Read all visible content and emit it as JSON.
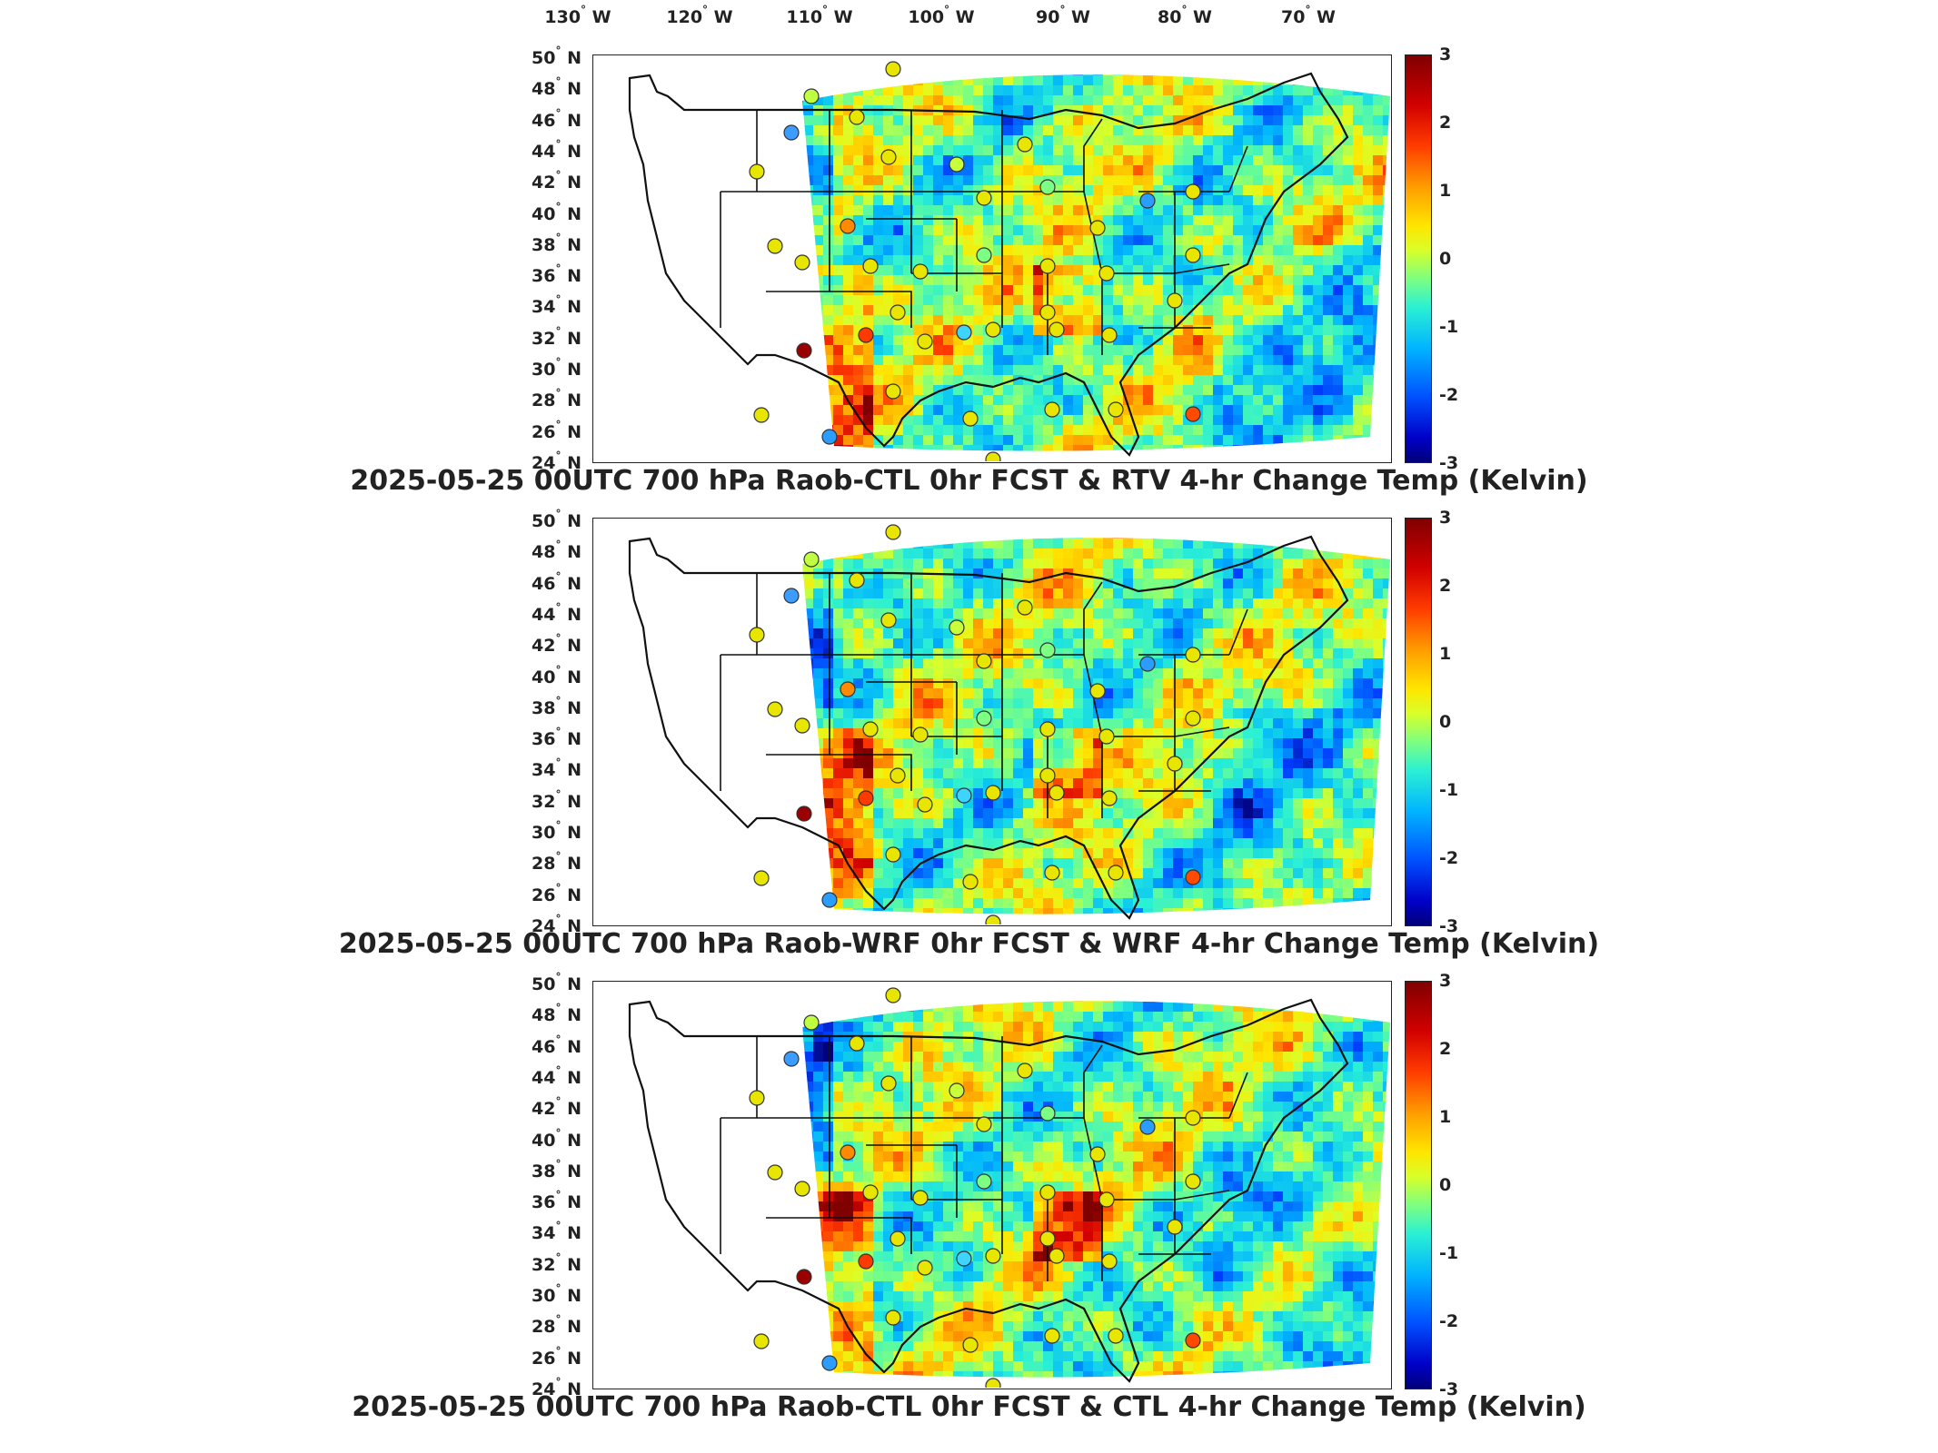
{
  "figure": {
    "lon_labels": [
      "130",
      "120",
      "110",
      "100",
      "90",
      "80",
      "70"
    ],
    "lon_suffix": "W",
    "lat_labels": [
      "50",
      "48",
      "46",
      "44",
      "42",
      "40",
      "38",
      "36",
      "34",
      "32",
      "30",
      "28",
      "26",
      "24"
    ],
    "lat_suffix": "N",
    "degree_symbol": "°",
    "colorbar_ticks": [
      "3",
      "2",
      "1",
      "0",
      "-1",
      "-2",
      "-3"
    ],
    "colors": {
      "max": "#800000",
      "warm": "#ff3a00",
      "neutral": "#ffe600",
      "cool": "#2af0d4",
      "cold": "#0050ff",
      "min": "#00007a"
    }
  },
  "panels": [
    {
      "title": "2025-05-25 00UTC 700 hPa Raob-CTL 0hr FCST & RTV 4-hr Change Temp (Kelvin)"
    },
    {
      "title": "2025-05-25 00UTC 700 hPa Raob-WRF 0hr FCST & WRF 4-hr Change Temp (Kelvin)"
    },
    {
      "title": "2025-05-25 00UTC 700 hPa Raob-CTL 0hr FCST & CTL 4-hr Change Temp (Kelvin)"
    }
  ]
}
